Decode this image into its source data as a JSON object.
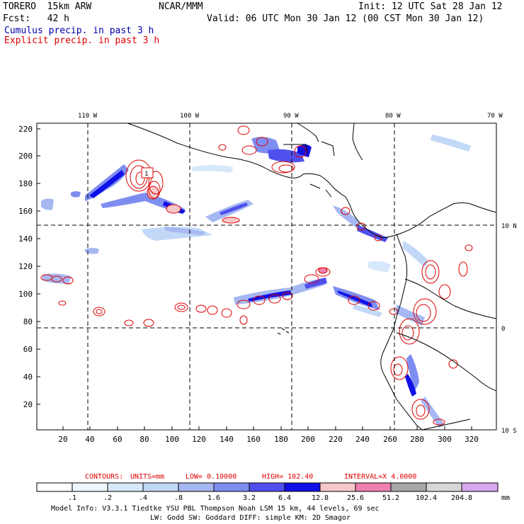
{
  "header": {
    "model": "TORERO  15km ARW",
    "org": "NCAR/MMM",
    "init": "Init: 12 UTC Sat 28 Jan 12",
    "fcst": "Fcst:   42 h",
    "valid": "Valid: 06 UTC Mon 30 Jan 12 (00 CST Mon 30 Jan 12)",
    "line1": "Cumulus precip. in past 3 h",
    "line2": "Explicit precip. in past 3 h"
  },
  "map": {
    "top_labels": [
      "110 W",
      "100 W",
      "90 W",
      "80 W",
      "70 W"
    ],
    "right_labels": [
      "10 N",
      "0",
      "10 S"
    ],
    "y_ticks": [
      "220",
      "200",
      "180",
      "160",
      "140",
      "120",
      "100",
      "80",
      "60",
      "40",
      "20"
    ],
    "x_ticks": [
      "20",
      "40",
      "60",
      "80",
      "100",
      "120",
      "140",
      "160",
      "180",
      "200",
      "220",
      "240",
      "260",
      "280",
      "300",
      "320"
    ],
    "high_label": "1"
  },
  "contours": {
    "label": "CONTOURS:",
    "units": "UNITS=mm",
    "low": "LOW= 0.10000",
    "high": "HIGH=  102.40",
    "interval": "INTERVAL=X  4.0000"
  },
  "colorbar": {
    "labels": [
      ".1",
      ".2",
      ".4",
      ".8",
      "1.6",
      "3.2",
      "6.4",
      "12.8",
      "25.6",
      "51.2",
      "102.4",
      "204.8"
    ],
    "unit": "mm",
    "colors": [
      "#ffffff",
      "#f0f6ff",
      "#d8e8fb",
      "#c2d8f7",
      "#a6b8f2",
      "#7e8ef0",
      "#5050ef",
      "#1010e8",
      "#f6c8c8",
      "#f080b0",
      "#a8a8a8",
      "#d7d7d7",
      "#d8a8f0"
    ]
  },
  "footer": {
    "line1": "Model Info: V3.3.1    Tiedtke YSU PBL  Thompson    Noah LSM  15 km,   44 levels,   69 sec",
    "line2": "LW: Godd SW: Goddard DIFF: simple KM: 2D Smagor"
  }
}
